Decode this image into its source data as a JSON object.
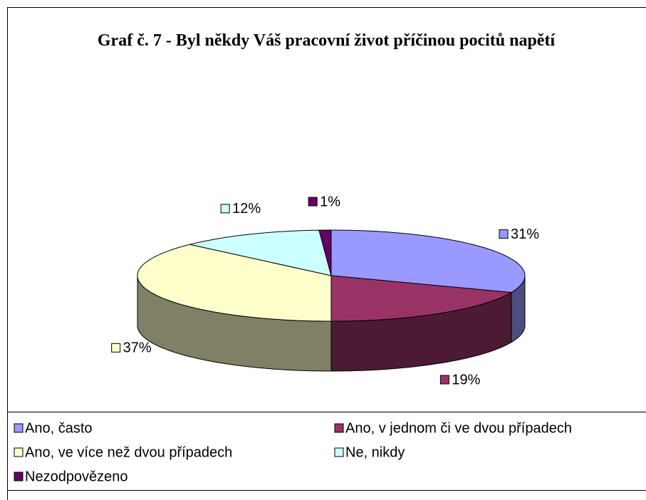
{
  "chart_data": {
    "type": "pie3d",
    "title": "Graf č. 7 - Byl někdy Váš pracovní život příčinou pocitů napětí",
    "categories": [
      "Ano, často",
      "Ano, v jednom či ve dvou případech",
      "Ano, ve více než dvou případech",
      "Ne, nikdy",
      "Nezodpovězeno"
    ],
    "values": [
      31,
      19,
      37,
      12,
      1
    ],
    "value_labels": [
      "31%",
      "19%",
      "37%",
      "12%",
      "1%"
    ],
    "colors": [
      "#9999ff",
      "#993366",
      "#ffffcc",
      "#ccffff",
      "#660066"
    ],
    "legend": "bottom"
  }
}
